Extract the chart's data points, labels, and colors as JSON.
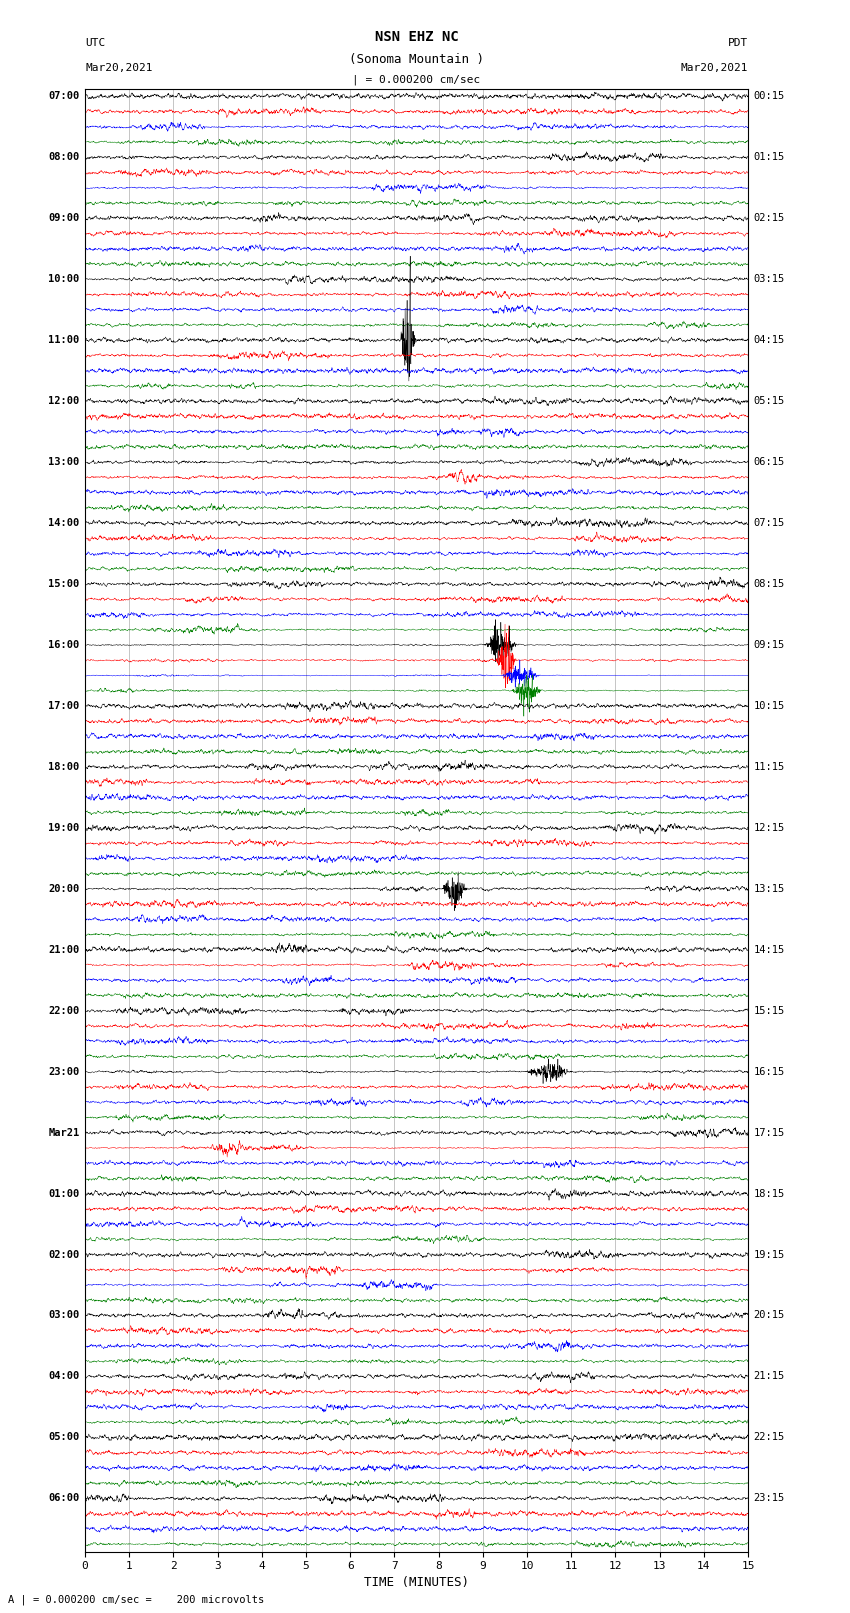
{
  "title_line1": "NSN EHZ NC",
  "title_line2": "(Sonoma Mountain )",
  "scale_text": "| = 0.000200 cm/sec",
  "left_header": [
    "UTC",
    "Mar20,2021"
  ],
  "right_header": [
    "PDT",
    "Mar20,2021"
  ],
  "xlabel": "TIME (MINUTES)",
  "footnote": "A | = 0.000200 cm/sec =    200 microvolts",
  "utc_times": [
    "07:00",
    "08:00",
    "09:00",
    "10:00",
    "11:00",
    "12:00",
    "13:00",
    "14:00",
    "15:00",
    "16:00",
    "17:00",
    "18:00",
    "19:00",
    "20:00",
    "21:00",
    "22:00",
    "23:00",
    "Mar21",
    "01:00",
    "02:00",
    "03:00",
    "04:00",
    "05:00",
    "06:00"
  ],
  "pdt_times": [
    "00:15",
    "01:15",
    "02:15",
    "03:15",
    "04:15",
    "05:15",
    "06:15",
    "07:15",
    "08:15",
    "09:15",
    "10:15",
    "11:15",
    "12:15",
    "13:15",
    "14:15",
    "15:15",
    "16:15",
    "17:15",
    "18:15",
    "19:15",
    "20:15",
    "21:15",
    "22:15",
    "23:15"
  ],
  "n_hours": 24,
  "traces_per_hour": 4,
  "colors": [
    "black",
    "red",
    "blue",
    "green"
  ],
  "x_ticks": [
    0,
    1,
    2,
    3,
    4,
    5,
    6,
    7,
    8,
    9,
    10,
    11,
    12,
    13,
    14,
    15
  ],
  "x_min": 0,
  "x_max": 15,
  "fig_width": 8.5,
  "fig_height": 16.13,
  "noise_seed": 42,
  "grid_color": "#aaaaaa",
  "row_amplitude": 0.42,
  "special_rows": {
    "16": {
      "event_time": 7.2,
      "event_amp_mult": 6.0
    },
    "36": {
      "event_time": 9.2,
      "event_amp_mult": 8.0
    },
    "37": {
      "event_time": 9.4,
      "event_amp_mult": 10.0
    },
    "38": {
      "event_time": 9.6,
      "event_amp_mult": 8.0
    },
    "39": {
      "event_time": 9.8,
      "event_amp_mult": 6.0
    },
    "52": {
      "event_time": 8.2,
      "event_amp_mult": 4.0
    },
    "64": {
      "event_time": 10.2,
      "event_amp_mult": 3.0
    }
  }
}
